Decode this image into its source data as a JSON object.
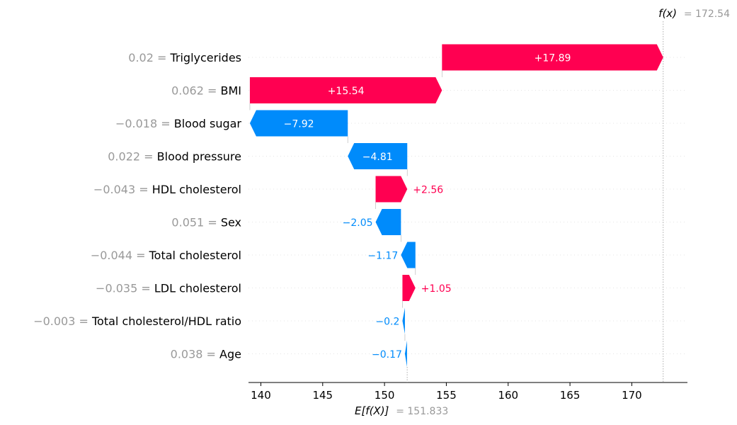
{
  "chart_data": {
    "type": "waterfall",
    "base_value": 151.833,
    "output_value": 172.54,
    "base_label": "E[f(X)]",
    "output_label": "f(x)",
    "base_value_text": "= 151.833",
    "output_value_text": "= 172.54",
    "xlim": [
      139,
      174.5
    ],
    "xticks": [
      140,
      145,
      150,
      155,
      160,
      165,
      170
    ],
    "colors": {
      "positive": "#ff0051",
      "negative": "#008bfb",
      "muted": "#999999"
    },
    "features": [
      {
        "value": "0.02",
        "name": "Triglycerides",
        "contribution": 17.89,
        "label": "+17.89"
      },
      {
        "value": "0.062",
        "name": "BMI",
        "contribution": 15.54,
        "label": "+15.54"
      },
      {
        "value": "−0.018",
        "name": "Blood sugar",
        "contribution": -7.92,
        "label": "−7.92"
      },
      {
        "value": "0.022",
        "name": "Blood pressure",
        "contribution": -4.81,
        "label": "−4.81"
      },
      {
        "value": "−0.043",
        "name": "HDL cholesterol",
        "contribution": 2.56,
        "label": "+2.56"
      },
      {
        "value": "0.051",
        "name": "Sex",
        "contribution": -2.05,
        "label": "−2.05"
      },
      {
        "value": "−0.044",
        "name": "Total cholesterol",
        "contribution": -1.17,
        "label": "−1.17"
      },
      {
        "value": "−0.035",
        "name": "LDL cholesterol",
        "contribution": 1.05,
        "label": "+1.05"
      },
      {
        "value": "−0.003",
        "name": "Total cholesterol/HDL ratio",
        "contribution": -0.2,
        "label": "−0.2"
      },
      {
        "value": "0.038",
        "name": "Age",
        "contribution": -0.17,
        "label": "−0.17"
      }
    ]
  }
}
